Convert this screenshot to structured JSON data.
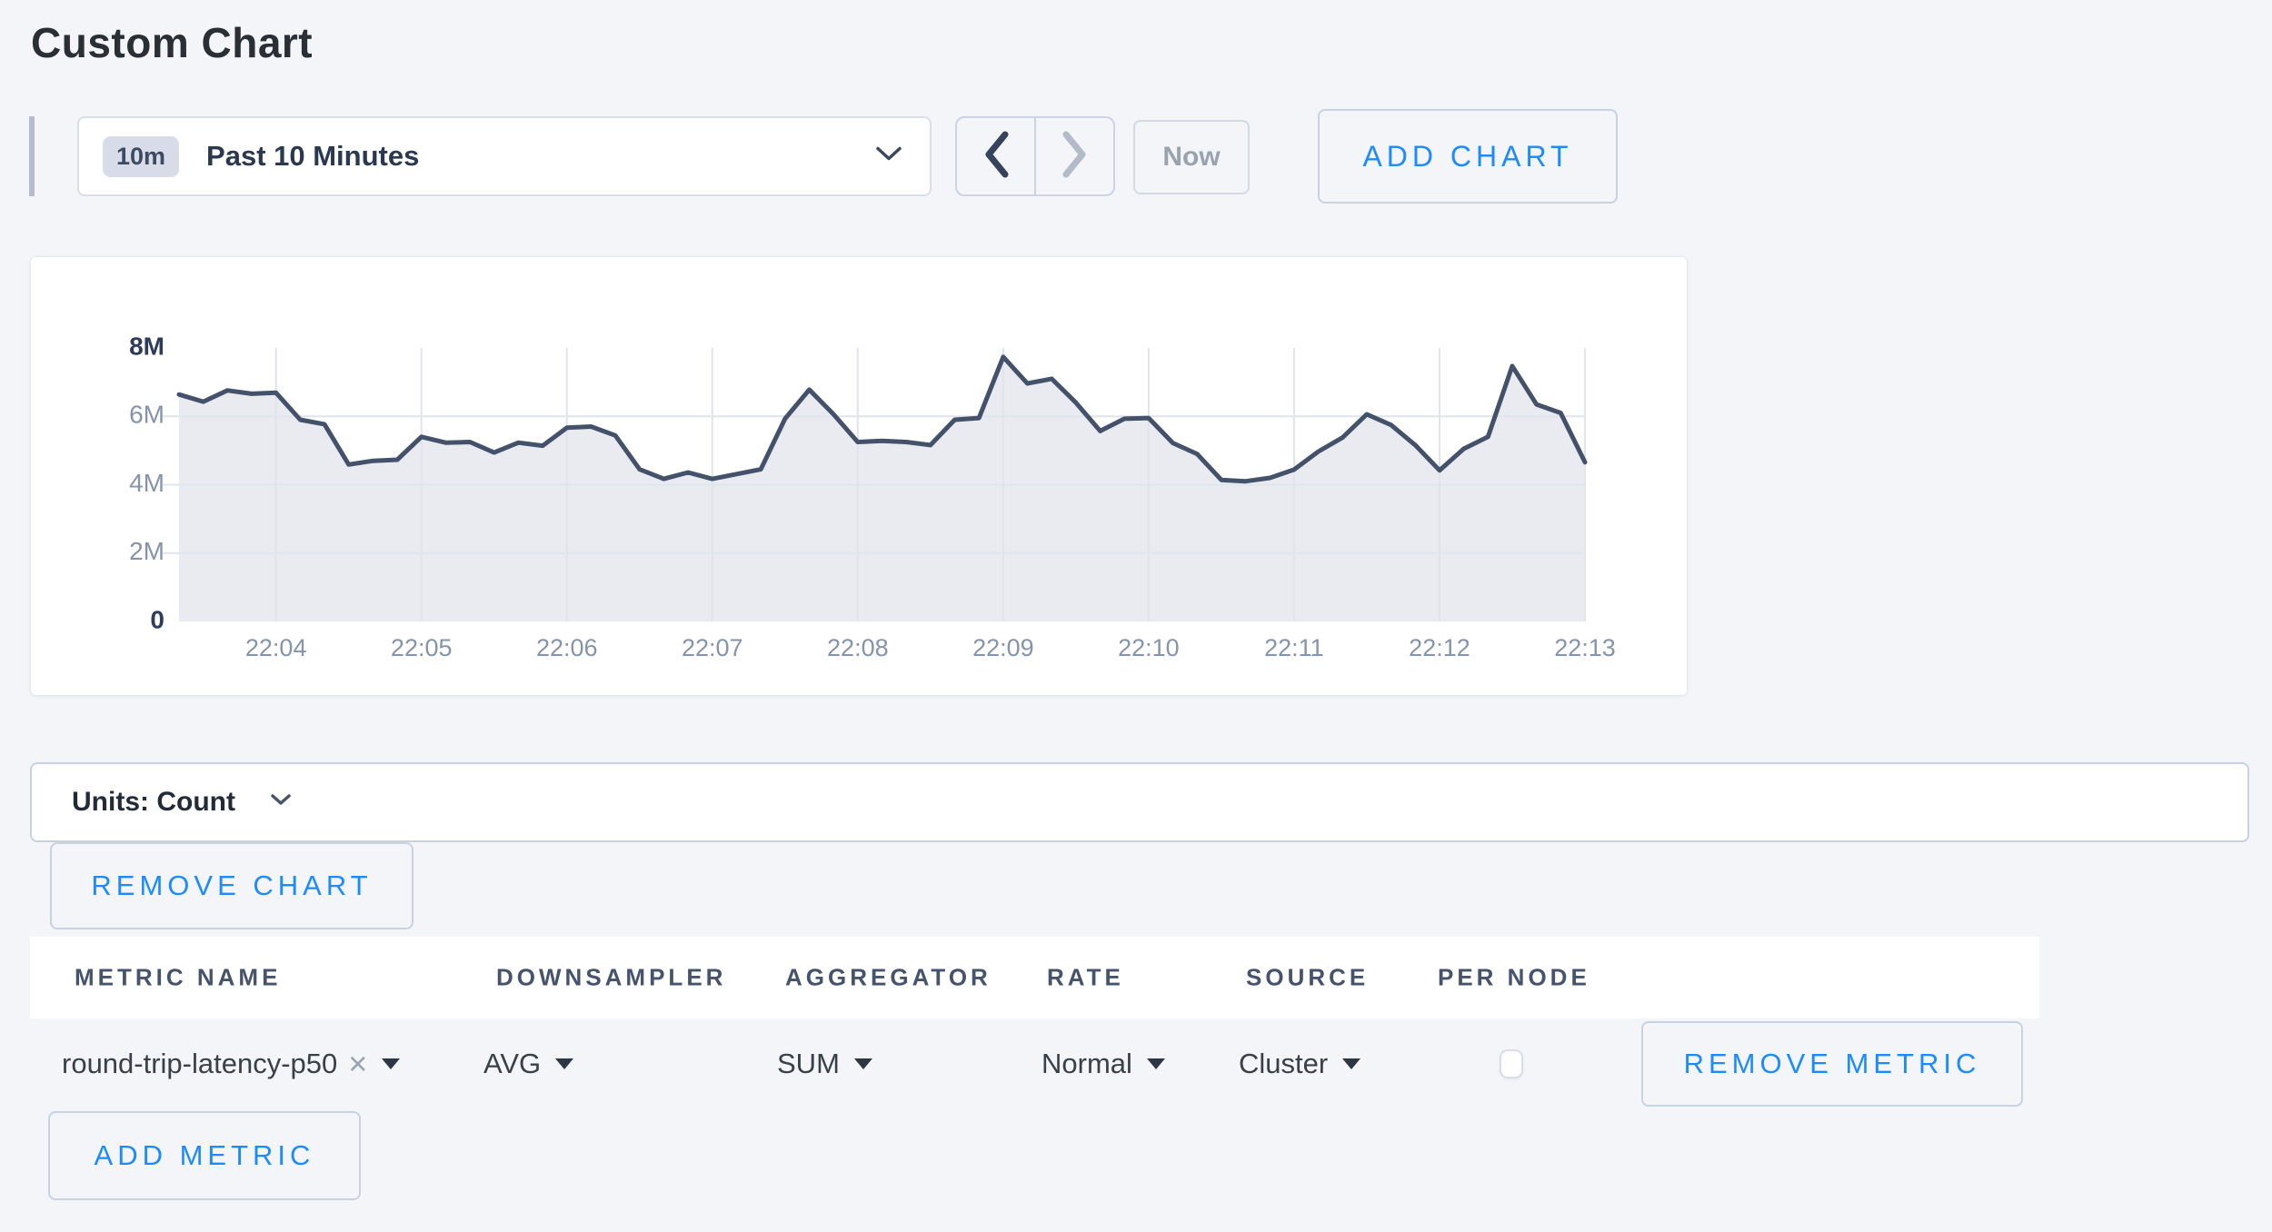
{
  "page": {
    "title": "Custom Chart",
    "background": "#f3f5f9",
    "accent_blue": "#1d8bff"
  },
  "icons": {
    "close": "×"
  },
  "toolbar": {
    "time_range": {
      "badge": "10m",
      "label": "Past 10 Minutes"
    },
    "now_label": "Now",
    "add_chart_label": "ADD CHART"
  },
  "chart_data": {
    "type": "area",
    "title": "",
    "xlabel": "",
    "ylabel": "",
    "unit": "Count",
    "x_tick_labels": [
      "22:04",
      "22:05",
      "22:06",
      "22:07",
      "22:08",
      "22:09",
      "22:10",
      "22:11",
      "22:12",
      "22:13"
    ],
    "x_first_tick_index": 4,
    "x_tick_every": 6,
    "y_tick_labels": [
      "0",
      "2M",
      "4M",
      "6M",
      "8M"
    ],
    "ylim_millions": [
      0,
      8
    ],
    "values_millions": [
      6.64,
      6.43,
      6.76,
      6.66,
      6.69,
      5.9,
      5.77,
      4.59,
      4.7,
      4.73,
      5.4,
      5.23,
      5.25,
      4.94,
      5.23,
      5.14,
      5.67,
      5.7,
      5.44,
      4.45,
      4.17,
      4.36,
      4.17,
      4.31,
      4.45,
      5.93,
      6.78,
      6.06,
      5.25,
      5.28,
      5.25,
      5.16,
      5.9,
      5.95,
      7.74,
      6.96,
      7.1,
      6.4,
      5.57,
      5.93,
      5.95,
      5.22,
      4.9,
      4.14,
      4.1,
      4.2,
      4.44,
      4.97,
      5.38,
      6.06,
      5.75,
      5.16,
      4.42,
      5.05,
      5.4,
      7.47,
      6.35,
      6.1,
      4.66
    ],
    "grid": true,
    "legend": "none",
    "line_color": "#44516b",
    "fill_color": "#e9ebf1",
    "grid_color": "#dfe4ed",
    "axis_label_color": "#8593ab",
    "axis_label_bold_color": "#2c3c5a"
  },
  "units_bar": {
    "label": "Units: Count"
  },
  "chart_actions": {
    "remove_chart_label": "REMOVE CHART"
  },
  "metrics_table": {
    "columns": [
      "METRIC NAME",
      "DOWNSAMPLER",
      "AGGREGATOR",
      "RATE",
      "SOURCE",
      "PER NODE"
    ],
    "rows": [
      {
        "metric_name": "round-trip-latency-p50",
        "downsampler": "AVG",
        "aggregator": "SUM",
        "rate": "Normal",
        "source": "Cluster",
        "per_node_checked": false,
        "remove_label": "REMOVE METRIC"
      }
    ],
    "add_metric_label": "ADD METRIC"
  }
}
